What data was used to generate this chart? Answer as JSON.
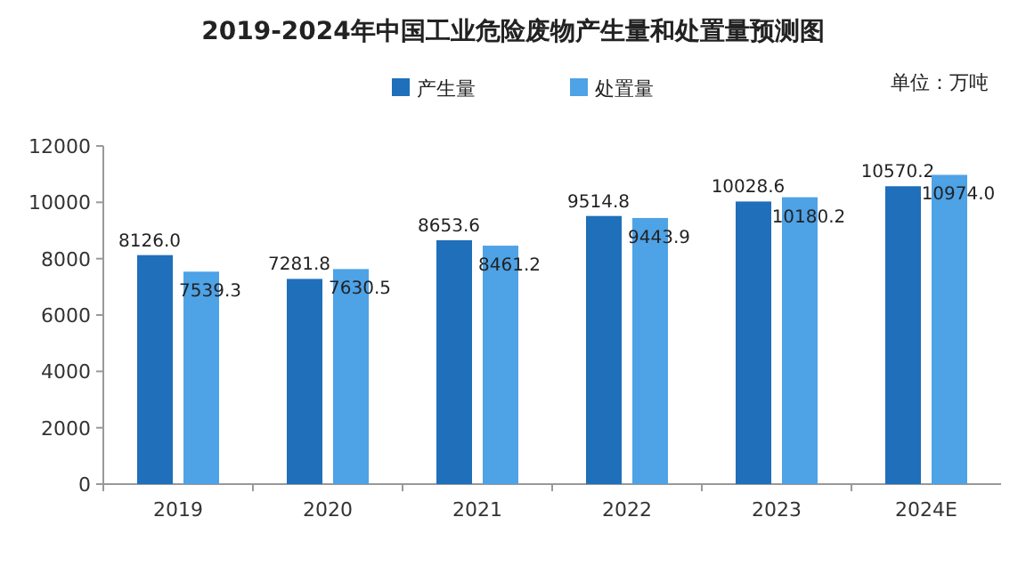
{
  "chart_data": {
    "type": "bar",
    "title": "2019-2024年中国工业危险废物产生量和处置量预测图",
    "annotations": [
      "单位：万吨"
    ],
    "categories": [
      "2019",
      "2020",
      "2021",
      "2022",
      "2023",
      "2024E"
    ],
    "series": [
      {
        "name": "产生量",
        "color": "#1f6fba",
        "values": [
          8126.0,
          7281.8,
          8653.6,
          9514.8,
          10028.6,
          10570.2
        ]
      },
      {
        "name": "处置量",
        "color": "#4ea2e6",
        "values": [
          7539.3,
          7630.5,
          8461.2,
          9443.9,
          10180.2,
          10974.0
        ]
      }
    ],
    "value_labels": [
      [
        "8126.0",
        "7281.8",
        "8653.6",
        "9514.8",
        "10028.6",
        "10570.2"
      ],
      [
        "7539.3",
        "7630.5",
        "8461.2",
        "9443.9",
        "10180.2",
        "10974.0"
      ]
    ],
    "ylim": [
      0,
      12000
    ],
    "yticks": [
      0,
      2000,
      4000,
      6000,
      8000,
      10000,
      12000
    ],
    "legend": "top",
    "grid": false
  }
}
